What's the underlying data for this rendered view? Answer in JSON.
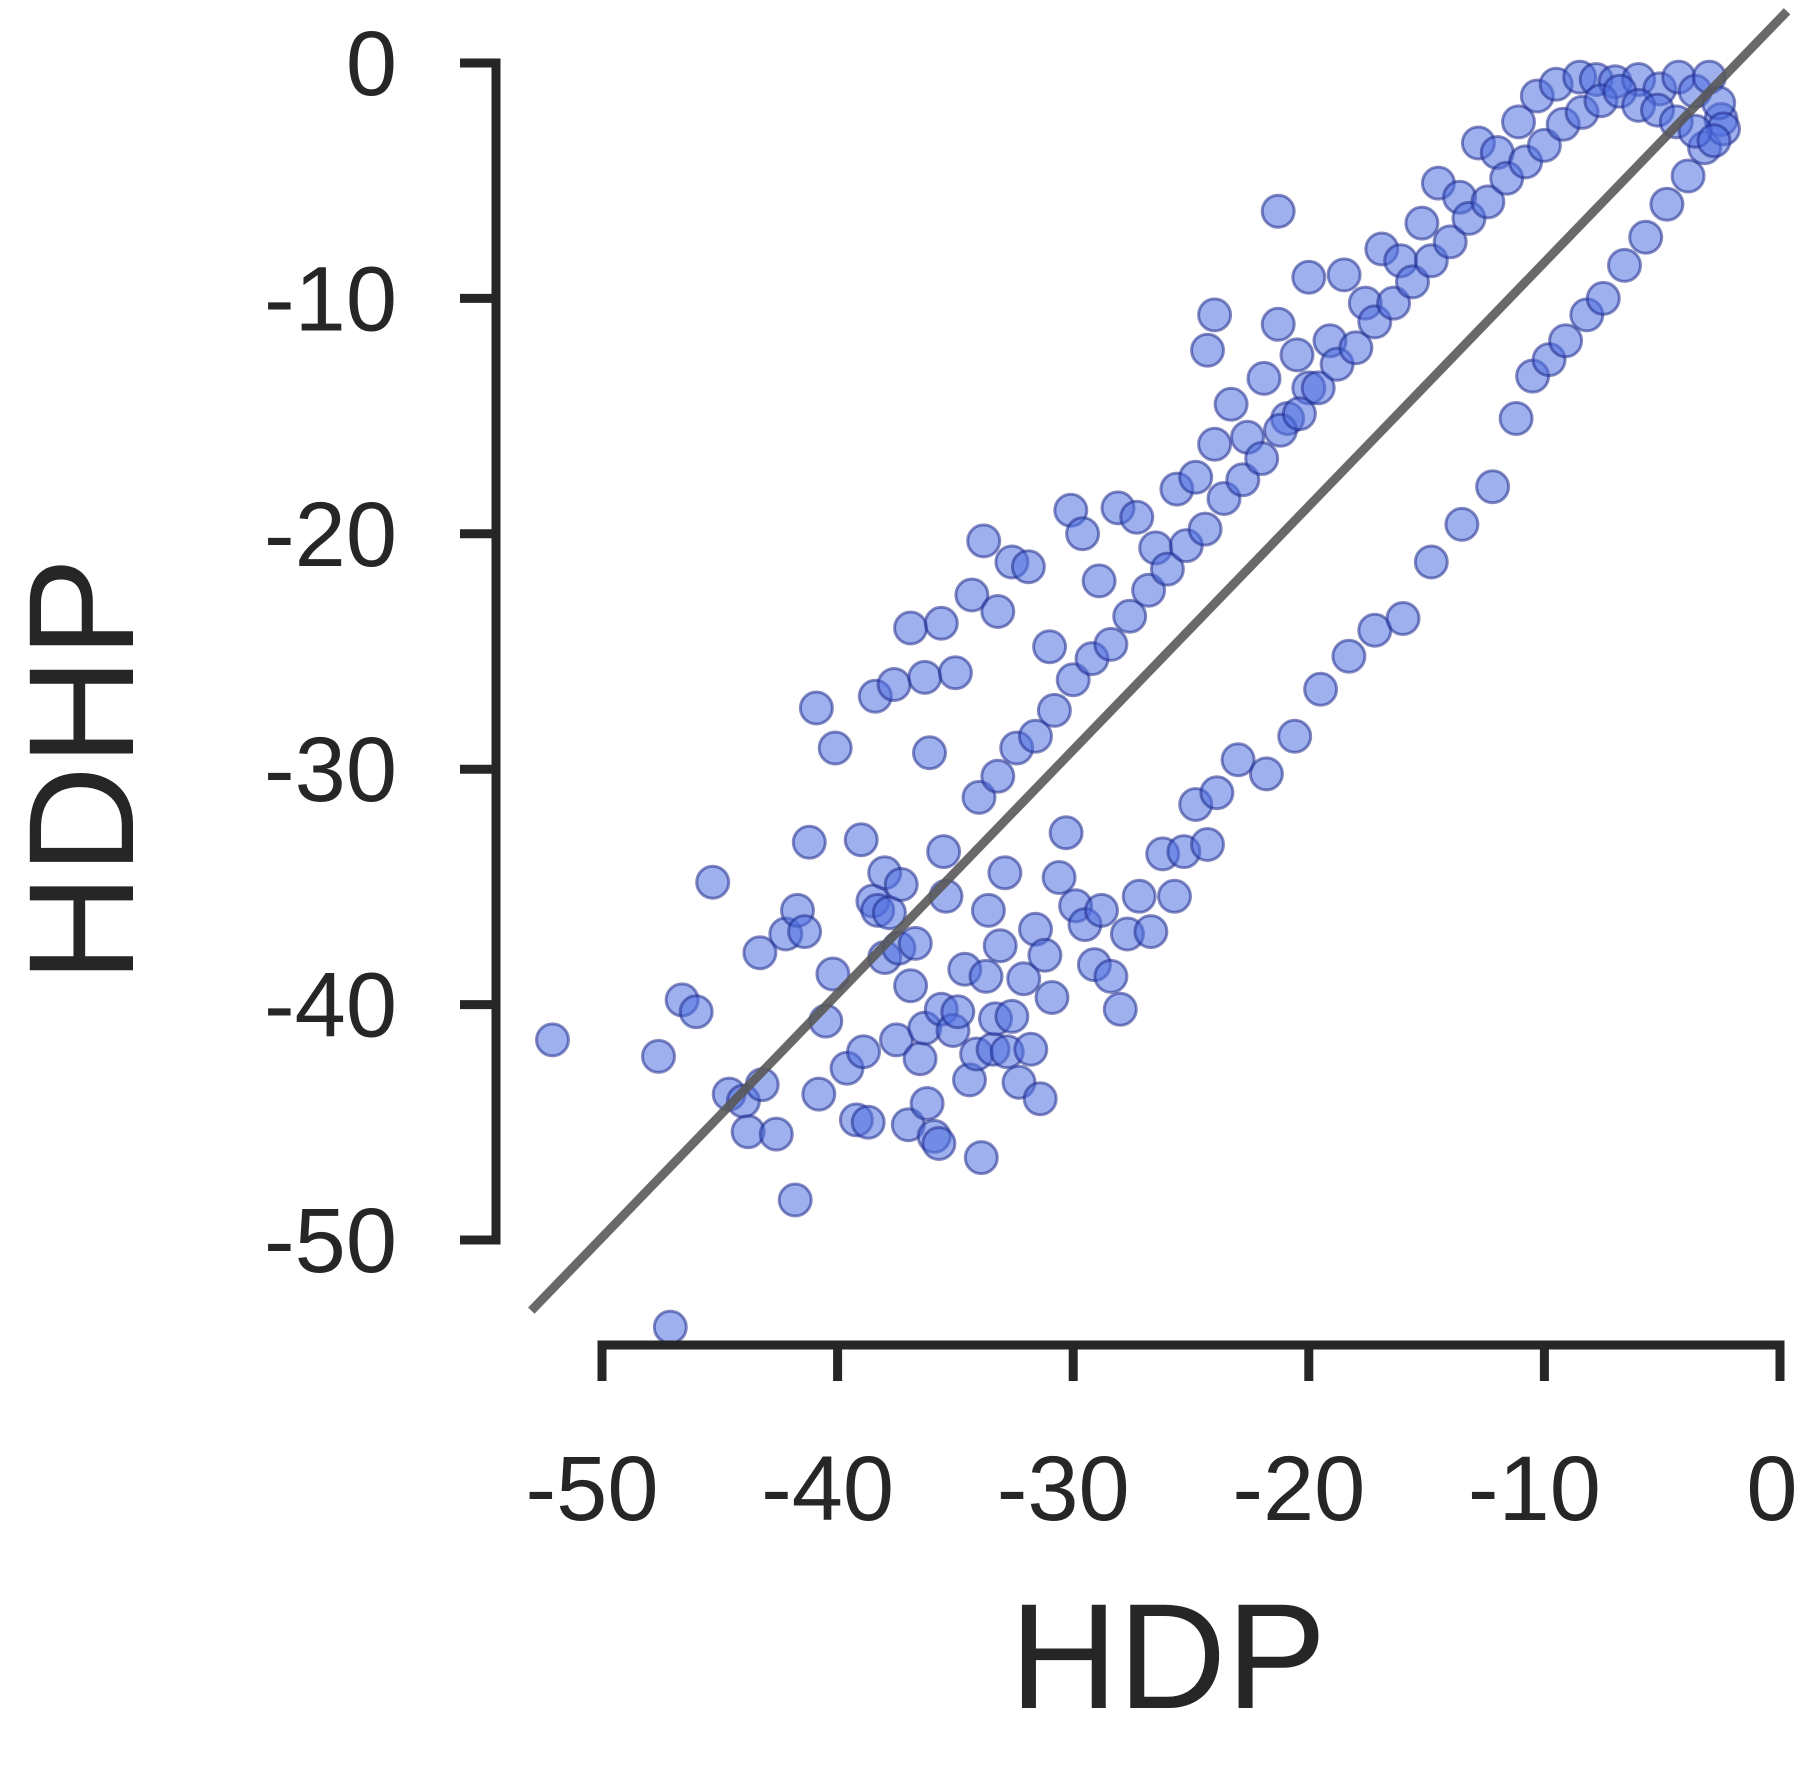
{
  "colors": {
    "point_fill": "#4f6fe0",
    "point_stroke": "#1f2a8c",
    "axis": "#262626",
    "identity_line": "#595959"
  },
  "chart_data": {
    "type": "scatter",
    "title": "",
    "xlabel": "HDP",
    "ylabel": "HDHP",
    "xlim": [
      -50,
      0
    ],
    "ylim": [
      -50,
      0
    ],
    "xticks": [
      -50,
      -40,
      -30,
      -20,
      -10,
      0
    ],
    "yticks": [
      0,
      -10,
      -20,
      -30,
      -40,
      -50
    ],
    "xtick_labels": [
      "-50",
      "-40",
      "-30",
      "-20",
      "-10",
      "0"
    ],
    "ytick_labels": [
      "0",
      "-10",
      "-20",
      "-30",
      "-40",
      "-50"
    ],
    "grid": false,
    "legend": "none",
    "reference_line": {
      "type": "identity",
      "from": [
        -53,
        -53
      ],
      "to": [
        0.3,
        2.2
      ]
    },
    "series": [
      {
        "marker": "circle",
        "points": [
          [
            -52.1,
            -41.5
          ],
          [
            -47.6,
            -42.2
          ],
          [
            -47.1,
            -53.7
          ],
          [
            -46.6,
            -39.8
          ],
          [
            -46.0,
            -40.3
          ],
          [
            -45.3,
            -34.8
          ],
          [
            -44.6,
            -43.8
          ],
          [
            -44.0,
            -44.1
          ],
          [
            -43.8,
            -45.4
          ],
          [
            -43.2,
            -43.4
          ],
          [
            -42.6,
            -45.5
          ],
          [
            -43.3,
            -37.8
          ],
          [
            -42.2,
            -37.0
          ],
          [
            -41.8,
            -48.3
          ],
          [
            -41.7,
            -36.0
          ],
          [
            -41.4,
            -36.9
          ],
          [
            -41.2,
            -33.1
          ],
          [
            -40.8,
            -43.8
          ],
          [
            -40.5,
            -40.7
          ],
          [
            -40.2,
            -38.7
          ],
          [
            -39.6,
            -42.7
          ],
          [
            -39.2,
            -44.9
          ],
          [
            -38.9,
            -42.0
          ],
          [
            -38.7,
            -45.0
          ],
          [
            -38.5,
            -35.6
          ],
          [
            -38.3,
            -36.0
          ],
          [
            -38.0,
            -34.4
          ],
          [
            -38.0,
            -38.0
          ],
          [
            -37.8,
            -36.1
          ],
          [
            -37.5,
            -41.5
          ],
          [
            -37.4,
            -37.6
          ],
          [
            -37.3,
            -34.9
          ],
          [
            -37.0,
            -45.1
          ],
          [
            -36.9,
            -39.2
          ],
          [
            -36.7,
            -37.4
          ],
          [
            -36.5,
            -42.3
          ],
          [
            -36.3,
            -41.0
          ],
          [
            -36.2,
            -44.2
          ],
          [
            -36.1,
            -29.3
          ],
          [
            -35.9,
            -45.6
          ],
          [
            -35.7,
            -45.9
          ],
          [
            -35.6,
            -40.2
          ],
          [
            -35.5,
            -33.5
          ],
          [
            -35.4,
            -35.4
          ],
          [
            -35.1,
            -41.1
          ],
          [
            -34.9,
            -40.3
          ],
          [
            -34.6,
            -38.5
          ],
          [
            -34.4,
            -43.2
          ],
          [
            -34.1,
            -42.1
          ],
          [
            -33.9,
            -46.5
          ],
          [
            -33.7,
            -38.8
          ],
          [
            -33.6,
            -36.0
          ],
          [
            -33.4,
            -41.9
          ],
          [
            -33.3,
            -40.6
          ],
          [
            -33.1,
            -37.5
          ],
          [
            -32.9,
            -34.4
          ],
          [
            -32.8,
            -42.0
          ],
          [
            -32.6,
            -40.5
          ],
          [
            -32.3,
            -43.3
          ],
          [
            -32.1,
            -38.9
          ],
          [
            -31.8,
            -41.9
          ],
          [
            -31.6,
            -36.8
          ],
          [
            -31.4,
            -44.0
          ],
          [
            -31.2,
            -37.9
          ],
          [
            -30.9,
            -39.7
          ],
          [
            -30.6,
            -34.6
          ],
          [
            -30.3,
            -32.7
          ],
          [
            -29.9,
            -35.8
          ],
          [
            -29.5,
            -36.6
          ],
          [
            -29.1,
            -38.3
          ],
          [
            -28.8,
            -36.0
          ],
          [
            -28.4,
            -38.8
          ],
          [
            -28.0,
            -40.2
          ],
          [
            -27.7,
            -37.0
          ],
          [
            -27.2,
            -35.4
          ],
          [
            -26.7,
            -36.9
          ],
          [
            -26.2,
            -33.6
          ],
          [
            -25.7,
            -35.4
          ],
          [
            -25.3,
            -33.5
          ],
          [
            -24.8,
            -31.5
          ],
          [
            -24.3,
            -33.2
          ],
          [
            -23.9,
            -31.0
          ],
          [
            -23.0,
            -29.6
          ],
          [
            -21.8,
            -30.2
          ],
          [
            -20.6,
            -28.6
          ],
          [
            -19.5,
            -26.6
          ],
          [
            -18.3,
            -25.2
          ],
          [
            -17.2,
            -24.1
          ],
          [
            -16.0,
            -23.6
          ],
          [
            -14.8,
            -21.2
          ],
          [
            -13.5,
            -19.6
          ],
          [
            -12.2,
            -18.0
          ],
          [
            -11.2,
            -15.1
          ],
          [
            -10.5,
            -13.3
          ],
          [
            -9.8,
            -12.6
          ],
          [
            -9.1,
            -11.8
          ],
          [
            -8.2,
            -10.7
          ],
          [
            -7.5,
            -10.0
          ],
          [
            -6.6,
            -8.6
          ],
          [
            -5.7,
            -7.4
          ],
          [
            -4.8,
            -6.0
          ],
          [
            -3.9,
            -4.8
          ],
          [
            -3.2,
            -3.6
          ],
          [
            -2.5,
            -2.4
          ],
          [
            -40.9,
            -27.4
          ],
          [
            -40.1,
            -29.1
          ],
          [
            -39.0,
            -33.0
          ],
          [
            -38.4,
            -26.9
          ],
          [
            -37.6,
            -26.4
          ],
          [
            -36.9,
            -24.0
          ],
          [
            -36.3,
            -26.1
          ],
          [
            -35.6,
            -23.8
          ],
          [
            -35.0,
            -25.9
          ],
          [
            -34.3,
            -22.6
          ],
          [
            -33.8,
            -20.3
          ],
          [
            -33.2,
            -23.3
          ],
          [
            -32.6,
            -21.2
          ],
          [
            -31.9,
            -21.4
          ],
          [
            -31.0,
            -24.8
          ],
          [
            -30.1,
            -19.0
          ],
          [
            -29.6,
            -20.0
          ],
          [
            -28.9,
            -22.0
          ],
          [
            -28.1,
            -18.9
          ],
          [
            -27.3,
            -19.3
          ],
          [
            -26.5,
            -20.6
          ],
          [
            -25.6,
            -18.1
          ],
          [
            -24.8,
            -17.6
          ],
          [
            -24.0,
            -16.2
          ],
          [
            -23.3,
            -14.5
          ],
          [
            -22.6,
            -15.9
          ],
          [
            -21.9,
            -13.4
          ],
          [
            -21.3,
            -11.1
          ],
          [
            -20.9,
            -15.1
          ],
          [
            -20.0,
            -13.8
          ],
          [
            -19.1,
            -11.8
          ],
          [
            -18.5,
            -9.0
          ],
          [
            -17.6,
            -10.2
          ],
          [
            -16.9,
            -7.9
          ],
          [
            -16.1,
            -8.4
          ],
          [
            -15.2,
            -6.8
          ],
          [
            -14.5,
            -5.1
          ],
          [
            -13.6,
            -5.7
          ],
          [
            -12.8,
            -3.4
          ],
          [
            -12.0,
            -3.8
          ],
          [
            -11.1,
            -2.5
          ],
          [
            -10.3,
            -1.4
          ],
          [
            -9.5,
            -0.9
          ],
          [
            -8.5,
            -0.6
          ],
          [
            -7.8,
            -0.7
          ],
          [
            -7.0,
            -0.8
          ],
          [
            -6.0,
            -0.7
          ],
          [
            -5.1,
            -1.1
          ],
          [
            -4.3,
            -0.6
          ],
          [
            -3.6,
            -1.2
          ],
          [
            -3.0,
            -0.6
          ],
          [
            -2.6,
            -1.7
          ],
          [
            -2.4,
            -2.8
          ],
          [
            -21.3,
            -6.3
          ],
          [
            -24.0,
            -10.7
          ],
          [
            -24.3,
            -12.2
          ],
          [
            -20.5,
            -12.4
          ],
          [
            -20.0,
            -9.1
          ],
          [
            -34.0,
            -31.2
          ],
          [
            -33.2,
            -30.3
          ],
          [
            -32.4,
            -29.1
          ],
          [
            -31.6,
            -28.6
          ],
          [
            -30.8,
            -27.5
          ],
          [
            -30.0,
            -26.2
          ],
          [
            -29.2,
            -25.3
          ],
          [
            -28.4,
            -24.7
          ],
          [
            -27.6,
            -23.5
          ],
          [
            -26.8,
            -22.4
          ],
          [
            -26.0,
            -21.5
          ],
          [
            -25.2,
            -20.5
          ],
          [
            -24.4,
            -19.8
          ],
          [
            -23.6,
            -18.5
          ],
          [
            -22.8,
            -17.7
          ],
          [
            -22.0,
            -16.8
          ],
          [
            -21.2,
            -15.6
          ],
          [
            -20.4,
            -14.9
          ],
          [
            -19.6,
            -13.8
          ],
          [
            -18.8,
            -12.8
          ],
          [
            -18.0,
            -12.1
          ],
          [
            -17.2,
            -11.0
          ],
          [
            -16.4,
            -10.2
          ],
          [
            -15.6,
            -9.3
          ],
          [
            -14.8,
            -8.4
          ],
          [
            -14.0,
            -7.6
          ],
          [
            -13.2,
            -6.6
          ],
          [
            -12.4,
            -5.9
          ],
          [
            -11.6,
            -4.9
          ],
          [
            -10.8,
            -4.2
          ],
          [
            -10.0,
            -3.5
          ],
          [
            -9.2,
            -2.6
          ],
          [
            -8.4,
            -2.1
          ],
          [
            -7.6,
            -1.6
          ],
          [
            -6.8,
            -1.2
          ],
          [
            -6.0,
            -1.8
          ],
          [
            -5.2,
            -2.0
          ],
          [
            -4.4,
            -2.5
          ],
          [
            -3.6,
            -2.9
          ],
          [
            -2.8,
            -3.3
          ]
        ]
      }
    ]
  }
}
